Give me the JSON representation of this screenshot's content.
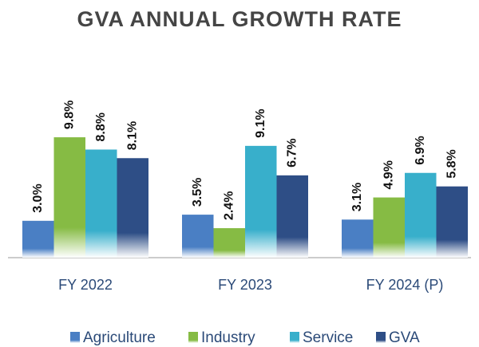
{
  "chart_data": {
    "type": "bar",
    "title": "GVA ANNUAL GROWTH RATE",
    "categories": [
      "FY 2022",
      "FY 2023",
      "FY 2024 (P)"
    ],
    "series": [
      {
        "name": "Agriculture",
        "color": "#4a7fc4",
        "values": [
          3.0,
          3.5,
          3.1
        ],
        "value_labels": [
          "3.0%",
          "3.5%",
          "3.1%"
        ]
      },
      {
        "name": "Industry",
        "color": "#86bb44",
        "values": [
          9.8,
          2.4,
          4.9
        ],
        "value_labels": [
          "9.8%",
          "2.4%",
          "4.9%"
        ]
      },
      {
        "name": "Service",
        "color": "#38afcb",
        "values": [
          8.8,
          9.1,
          6.9
        ],
        "value_labels": [
          "8.8%",
          "9.1%",
          "6.9%"
        ]
      },
      {
        "name": "GVA",
        "color": "#2e4e86",
        "values": [
          8.1,
          6.7,
          5.8
        ],
        "value_labels": [
          "8.1%",
          "6.7%",
          "5.8%"
        ]
      }
    ]
  }
}
